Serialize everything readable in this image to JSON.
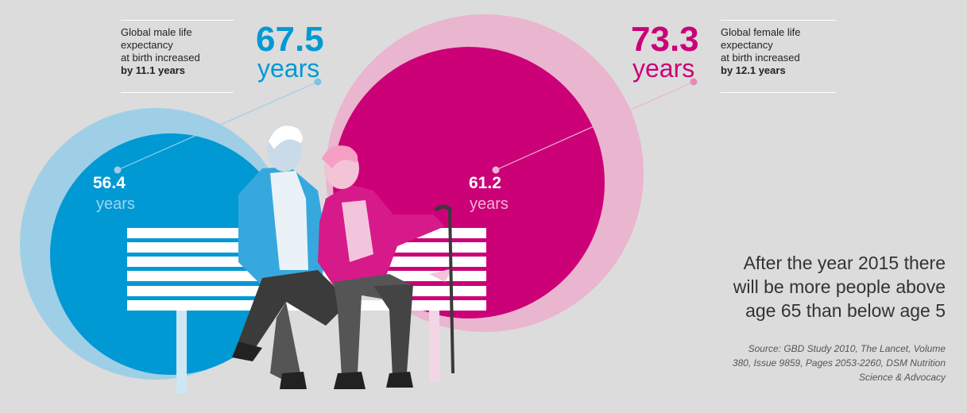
{
  "male": {
    "caption_lines": [
      "Global male life",
      "expectancy",
      "at birth increased"
    ],
    "caption_bold": "by 11.1 years",
    "current_value": "67.5",
    "current_unit": "years",
    "past_value": "56.4",
    "past_unit": "years",
    "color": "#0099d4",
    "light_color": "#9fcfe6"
  },
  "female": {
    "caption_lines": [
      "Global female life",
      "expectancy",
      "at birth increased"
    ],
    "caption_bold": "by 12.1 years",
    "current_value": "73.3",
    "current_unit": "years",
    "past_value": "61.2",
    "past_unit": "years",
    "color": "#cc0077",
    "light_color": "#eab5cf"
  },
  "headline_lines": [
    "After the year 2015 there",
    "will be more people above",
    "age 65 than below age 5"
  ],
  "source_lines": [
    "Source: GBD Study 2010, The Lancet, Volume",
    "380, Issue 9859, Pages 2053-2260, DSM Nutrition",
    "Science & Advocacy"
  ]
}
